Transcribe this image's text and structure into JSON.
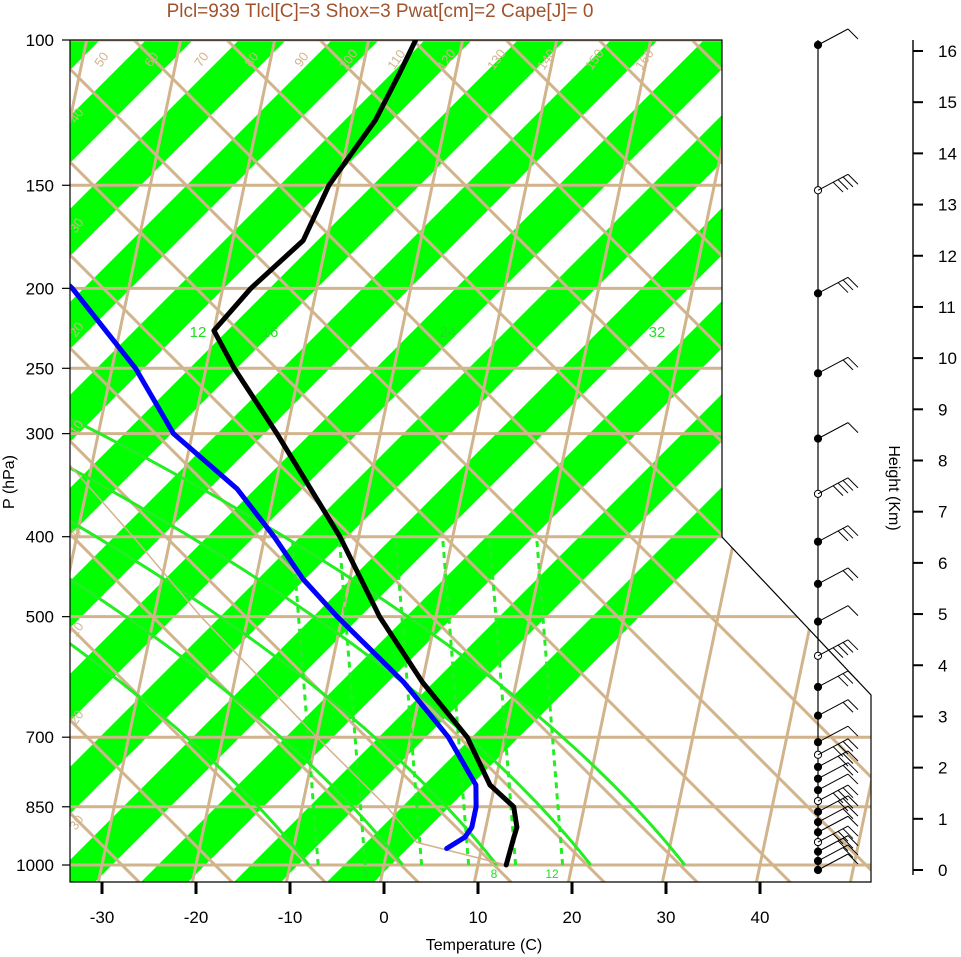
{
  "title": "Plcl=939 Tlcl[C]=3 Shox=3 Pwat[cm]=2 Cape[J]= 0",
  "colors": {
    "band": "#00ff00",
    "isobar": "#d2b48c",
    "mixing_ratio": "#22ee22",
    "temperature": "#000000",
    "dewpoint": "#0000ff",
    "title": "#a0522d"
  },
  "chart_data": {
    "type": "line",
    "title": "Plcl=939 Tlcl[C]=3 Shox=3 Pwat[cm]=2 Cape[J]= 0",
    "xlabel": "Temperature (C)",
    "ylabel": "P (hPa)",
    "right_ylabel": "Height (Km)",
    "x_ticks": [
      "-30",
      "-20",
      "-10",
      "0",
      "10",
      "20",
      "30",
      "40"
    ],
    "y_ticks": [
      "100",
      "150",
      "200",
      "250",
      "300",
      "400",
      "500",
      "700",
      "850",
      "1000"
    ],
    "height_ticks": [
      "0",
      "1",
      "2",
      "3",
      "4",
      "5",
      "6",
      "7",
      "8",
      "9",
      "10",
      "11",
      "12",
      "13",
      "14",
      "15",
      "16"
    ],
    "isotherm_labels": [
      "50",
      "60",
      "70",
      "80",
      "90",
      "100",
      "110",
      "120",
      "130",
      "140",
      "150",
      "160",
      "30",
      "20",
      "10",
      "0",
      "10",
      "20",
      "30",
      "40",
      "30",
      "20",
      "10",
      "0",
      "10",
      "20",
      "30"
    ],
    "moist_adiabat_labels": [
      "12",
      "16",
      "24",
      "32"
    ],
    "mixing_ratio_labels": [
      "3",
      "8",
      "12"
    ],
    "series": [
      {
        "name": "Temperature",
        "pressure": [
          1000,
          925,
          900,
          850,
          800,
          700,
          600,
          500,
          400,
          300,
          250,
          225,
          200,
          175,
          150,
          125,
          110,
          100
        ],
        "temperature": [
          13,
          13.2,
          13.3,
          12.5,
          9.5,
          6,
          0,
          -6,
          -12,
          -21,
          -27,
          -30,
          -27,
          -22.5,
          -21,
          -17.5,
          -16,
          -15
        ]
      },
      {
        "name": "Dewpoint",
        "pressure": [
          955,
          925,
          900,
          850,
          800,
          700,
          600,
          500,
          450,
          400,
          350,
          300,
          250,
          200,
          175,
          150,
          125,
          100
        ],
        "dewpoint": [
          6.3,
          8,
          8.5,
          8.5,
          8,
          4,
          -2,
          -10.5,
          -15,
          -19,
          -24,
          -32,
          -37.5,
          -46,
          -52.5,
          -55,
          -57,
          -60
        ]
      }
    ],
    "wind_barbs_pressure": [
      1000,
      975,
      950,
      925,
      900,
      875,
      850,
      825,
      800,
      775,
      750,
      725,
      700,
      650,
      600,
      550,
      500,
      450,
      400,
      350,
      300,
      250,
      200,
      150,
      100
    ]
  }
}
